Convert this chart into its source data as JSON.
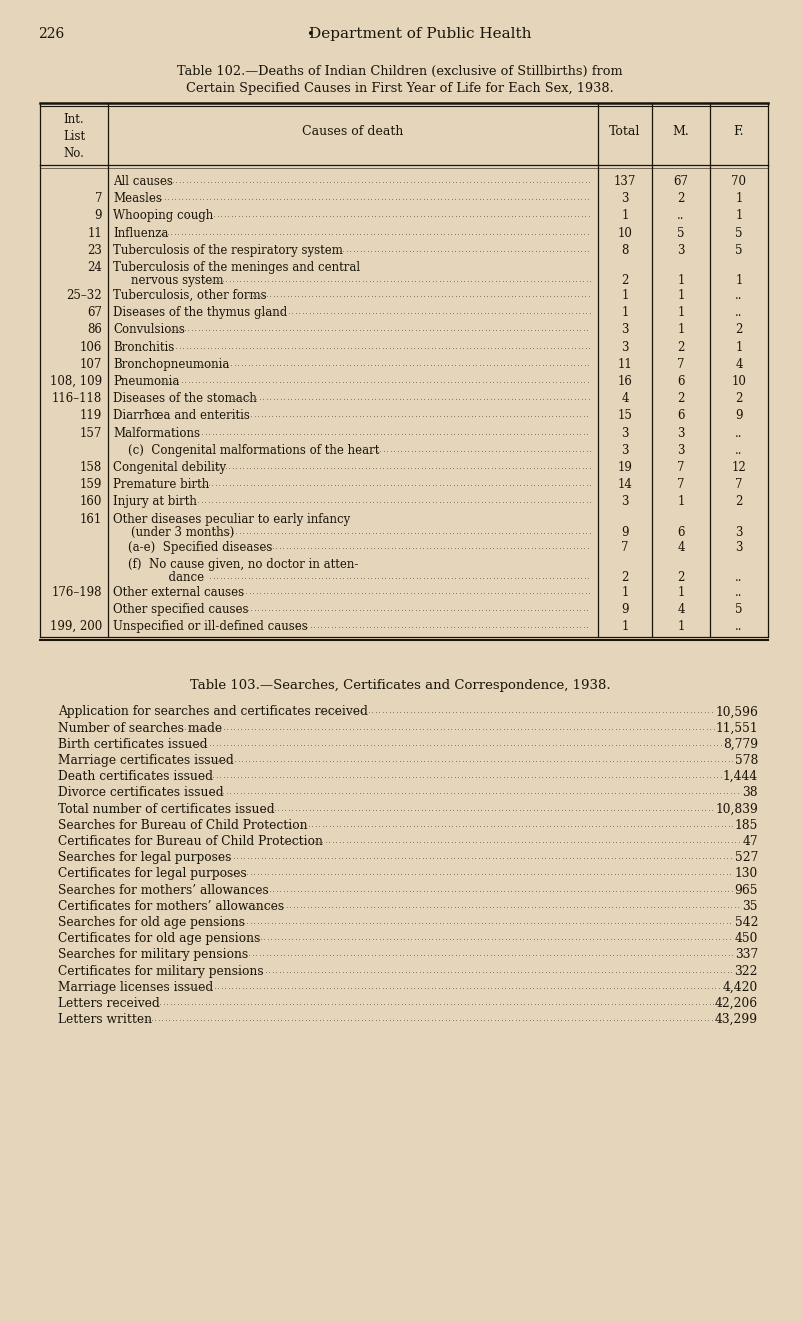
{
  "bg_color": "#e5d5bb",
  "page_number": "226",
  "page_bullet": "•",
  "page_header": "Department of Public Health",
  "table102_title_line1": "Table 102.—Deaths of Indian Children (exclusive of Stillbirths) from",
  "table102_title_line2": "Certain Specified Causes in First Year of Life for Each Sex, 1938.",
  "table102_rows": [
    {
      "list_no": "",
      "cause": "All causes",
      "total": "137",
      "m": "67",
      "f": "70",
      "multiline": false
    },
    {
      "list_no": "7",
      "cause": "Measles",
      "total": "3",
      "m": "2",
      "f": "1",
      "multiline": false
    },
    {
      "list_no": "9",
      "cause": "Whooping cough",
      "total": "1",
      "m": "..",
      "f": "1",
      "multiline": false
    },
    {
      "list_no": "11",
      "cause": "Influenza",
      "total": "10",
      "m": "5",
      "f": "5",
      "multiline": false
    },
    {
      "list_no": "23",
      "cause": "Tuberculosis of the respiratory system",
      "total": "8",
      "m": "3",
      "f": "5",
      "multiline": false
    },
    {
      "list_no": "24",
      "cause": "Tuberculosis of the meninges and central",
      "cause2": "nervous system",
      "total": "2",
      "m": "1",
      "f": "1",
      "multiline": true
    },
    {
      "list_no": "25–32",
      "cause": "Tuberculosis, other forms",
      "total": "1",
      "m": "1",
      "f": "..",
      "multiline": false
    },
    {
      "list_no": "67",
      "cause": "Diseases of the thymus gland",
      "total": "1",
      "m": "1",
      "f": "..",
      "multiline": false
    },
    {
      "list_no": "86",
      "cause": "Convulsions",
      "total": "3",
      "m": "1",
      "f": "2",
      "multiline": false
    },
    {
      "list_no": "106",
      "cause": "Bronchitis",
      "total": "3",
      "m": "2",
      "f": "1",
      "multiline": false
    },
    {
      "list_no": "107",
      "cause": "Bronchopneumonia",
      "total": "11",
      "m": "7",
      "f": "4",
      "multiline": false
    },
    {
      "list_no": "108, 109",
      "cause": "Pneumonia",
      "total": "16",
      "m": "6",
      "f": "10",
      "multiline": false
    },
    {
      "list_no": "116–118",
      "cause": "Diseases of the stomach",
      "total": "4",
      "m": "2",
      "f": "2",
      "multiline": false
    },
    {
      "list_no": "119",
      "cause": "Diarrħœa and enteritis",
      "total": "15",
      "m": "6",
      "f": "9",
      "multiline": false
    },
    {
      "list_no": "157",
      "cause": "Malformations",
      "total": "3",
      "m": "3",
      "f": "..",
      "multiline": false
    },
    {
      "list_no": "",
      "cause": "    (c)  Congenital malformations of the heart",
      "total": "3",
      "m": "3",
      "f": "..",
      "multiline": false
    },
    {
      "list_no": "158",
      "cause": "Congenital debility",
      "total": "19",
      "m": "7",
      "f": "12",
      "multiline": false
    },
    {
      "list_no": "159",
      "cause": "Premature birth",
      "total": "14",
      "m": "7",
      "f": "7",
      "multiline": false
    },
    {
      "list_no": "160",
      "cause": "Injury at birth",
      "total": "3",
      "m": "1",
      "f": "2",
      "multiline": false
    },
    {
      "list_no": "161",
      "cause": "Other diseases peculiar to early infancy",
      "cause2": "(under 3 months)",
      "total": "9",
      "m": "6",
      "f": "3",
      "multiline": true
    },
    {
      "list_no": "",
      "cause": "    (a-e)  Specified diseases",
      "total": "7",
      "m": "4",
      "f": "3",
      "multiline": false
    },
    {
      "list_no": "",
      "cause": "    (f)  No cause given, no doctor in atten-",
      "cause2": "          dance",
      "total": "2",
      "m": "2",
      "f": "..",
      "multiline": true
    },
    {
      "list_no": "176–198",
      "cause": "Other external causes",
      "total": "1",
      "m": "1",
      "f": "..",
      "multiline": false
    },
    {
      "list_no": "",
      "cause": "Other specified causes",
      "total": "9",
      "m": "4",
      "f": "5",
      "multiline": false
    },
    {
      "list_no": "199, 200",
      "cause": "Unspecified or ill-defined causes",
      "total": "1",
      "m": "1",
      "f": "..",
      "multiline": false
    }
  ],
  "table103_title": "Table 103.—Searches, Certificates and Correspondence, 1938.",
  "table103_rows": [
    {
      "label": "Application for searches and certificates received",
      "value": "10,596"
    },
    {
      "label": "Number of searches made",
      "value": "11,551"
    },
    {
      "label": "Birth certificates issued",
      "value": "8,779"
    },
    {
      "label": "Marriage certificates issued",
      "value": "578"
    },
    {
      "label": "Death certificates issued",
      "value": "1,444"
    },
    {
      "label": "Divorce certificates issued",
      "value": "38"
    },
    {
      "label": "Total number of certificates issued",
      "value": "10,839"
    },
    {
      "label": "Searches for Bureau of Child Protection",
      "value": "185"
    },
    {
      "label": "Certificates for Bureau of Child Protection",
      "value": "47"
    },
    {
      "label": "Searches for legal purposes",
      "value": "527"
    },
    {
      "label": "Certificates for legal purposes",
      "value": "130"
    },
    {
      "label": "Searches for mothers’ allowances",
      "value": "965"
    },
    {
      "label": "Certificates for mothers’ allowances",
      "value": "35"
    },
    {
      "label": "Searches for old age pensions",
      "value": "542"
    },
    {
      "label": "Certificates for old age pensions",
      "value": "450"
    },
    {
      "label": "Searches for military pensions",
      "value": "337"
    },
    {
      "label": "Certificates for military pensions",
      "value": "322"
    },
    {
      "label": "Marriage licenses issued",
      "value": "4,420"
    },
    {
      "label": "Letters received",
      "value": "42,206"
    },
    {
      "label": "Letters written",
      "value": "43,299"
    }
  ]
}
